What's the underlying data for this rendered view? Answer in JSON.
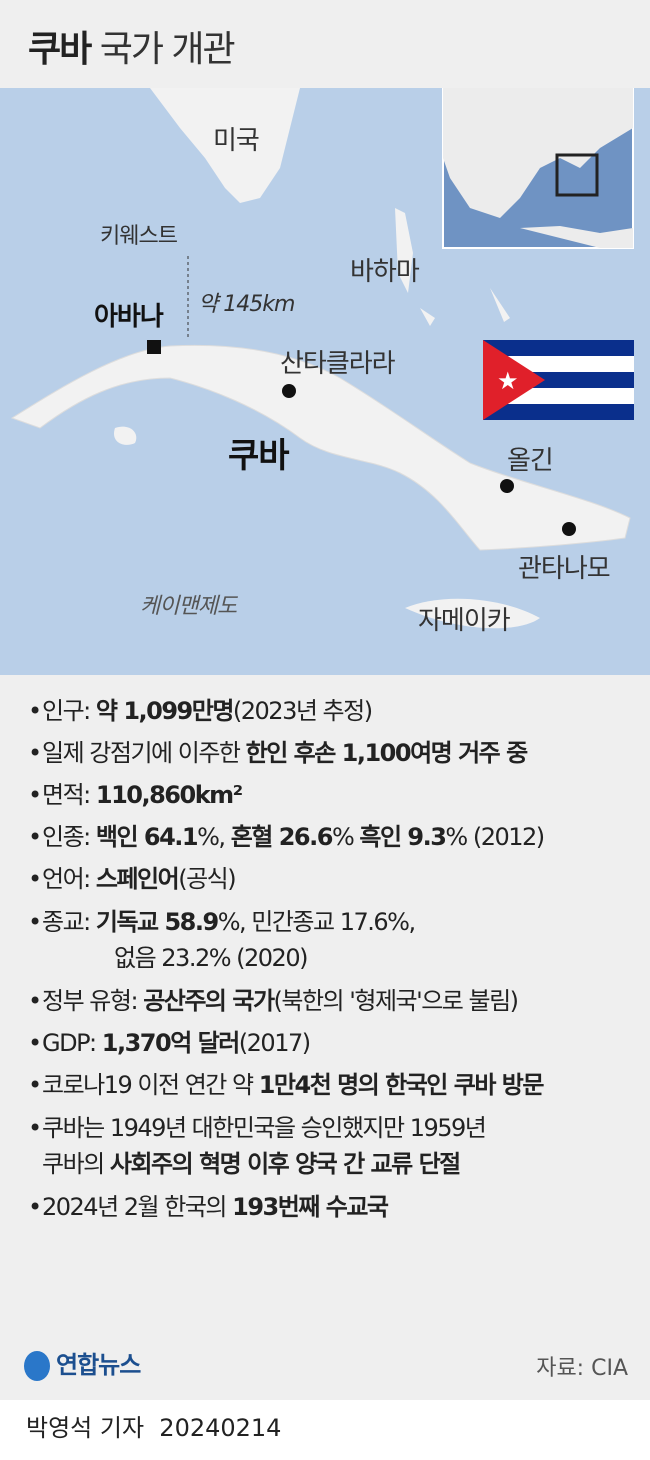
{
  "title": {
    "bold": "쿠바",
    "light": "국가 개관"
  },
  "map": {
    "labels": {
      "usa": "미국",
      "keywest": "키웨스트",
      "distance": "약 145km",
      "bahamas": "바하마",
      "havana": "아바나",
      "santa_clara": "산타클라라",
      "cuba": "쿠바",
      "holguin": "올긴",
      "guantanamo": "관타나모",
      "cayman": "케이맨제도",
      "jamaica": "자메이카"
    },
    "colors": {
      "sea": "#b9cfe8",
      "land": "#f2f2f2",
      "inset_sea": "#6f93c3",
      "flag_blue": "#0a2f8c",
      "flag_red": "#e0202a"
    }
  },
  "info": {
    "population": {
      "label": "인구:",
      "value": "약 1,099만명",
      "note": "(2023년 추정)"
    },
    "koreans": {
      "pre": "일제 강점기에 이주한",
      "value": "한인 후손 1,100여명 거주 중"
    },
    "area": {
      "label": "면적:",
      "value": "110,860km²"
    },
    "ethnicity": {
      "label": "인종:",
      "a": "백인 64.1",
      "a2": "%,",
      "b": "혼혈 26.6",
      "b2": "%",
      "c": "흑인 9.3",
      "c2": "% (2012)"
    },
    "language": {
      "label": "언어:",
      "value": "스페인어",
      "note": "(공식)"
    },
    "religion": {
      "label": "종교:",
      "value": "기독교 58.9",
      "rest": "%, 민간종교 17.6%,",
      "line2": "없음 23.2% (2020)"
    },
    "government": {
      "label": "정부 유형:",
      "value": "공산주의 국가",
      "note": "(북한의 '형제국'으로 불림)"
    },
    "gdp": {
      "label": "GDP:",
      "value": "1,370억 달러",
      "note": "(2017)"
    },
    "visitors": {
      "pre": "코로나19 이전 연간 약",
      "value": "1만4천 명의 한국인 쿠바 방문"
    },
    "history": {
      "line1": "쿠바는 1949년 대한민국을 승인했지만 1959년",
      "pre2": "쿠바의",
      "value2": "사회주의 혁명 이후 양국 간 교류 단절"
    },
    "relations": {
      "pre": "2024년 2월 한국의",
      "value": "193번째 수교국"
    }
  },
  "footer": {
    "logo": "연합뉴스",
    "source": "자료: CIA",
    "byline": "박영석 기자",
    "date": "20240214"
  }
}
